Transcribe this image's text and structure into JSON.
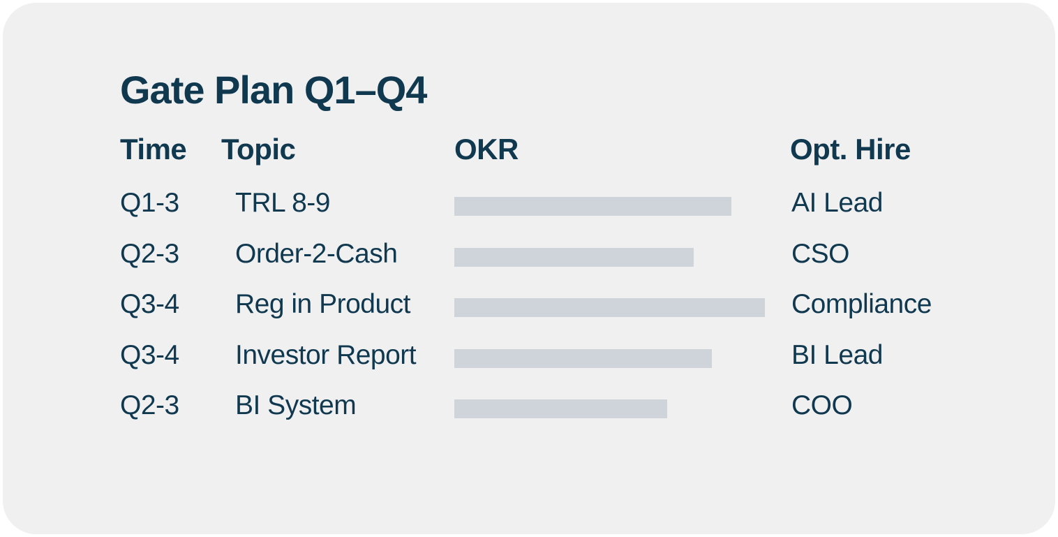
{
  "title": "Gate Plan Q1–Q4",
  "colors": {
    "page_background": "#ffffff",
    "card_background": "#f0f0f1",
    "text": "#10384f",
    "okr_bar": "#cfd3da"
  },
  "table": {
    "headers": {
      "time": "Time",
      "topic": "Topic",
      "okr": "OKR",
      "opt_hire": "Opt. Hire"
    },
    "rows": [
      {
        "time": "Q1-3",
        "topic": "TRL 8-9",
        "okr_bar_width": 397,
        "opt_hire": "AI Lead"
      },
      {
        "time": "Q2-3",
        "topic": "Order-2-Cash",
        "okr_bar_width": 343,
        "opt_hire": "CSO"
      },
      {
        "time": "Q3-4",
        "topic": "Reg in Product",
        "okr_bar_width": 445,
        "opt_hire": "Compliance"
      },
      {
        "time": "Q3-4",
        "topic": "Investor Report",
        "okr_bar_width": 369,
        "opt_hire": "BI Lead"
      },
      {
        "time": "Q2-3",
        "topic": "BI System",
        "okr_bar_width": 305,
        "opt_hire": "COO"
      }
    ]
  }
}
